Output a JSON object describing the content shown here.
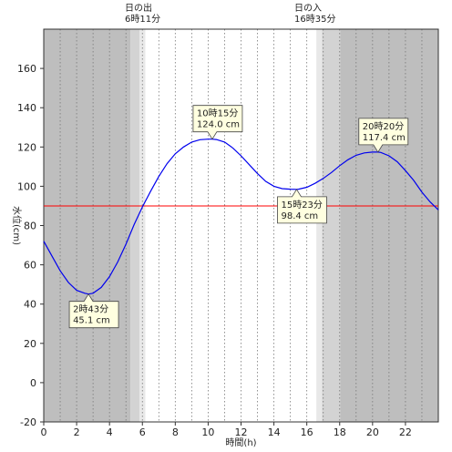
{
  "chart_data": {
    "type": "line",
    "title": "",
    "xlabel": "時間(h)",
    "ylabel": "水位(cm)",
    "xlim": [
      0,
      24
    ],
    "ylim": [
      -20,
      180
    ],
    "xticks": [
      0,
      2,
      4,
      6,
      8,
      10,
      12,
      14,
      16,
      18,
      20,
      22
    ],
    "yticks": [
      -20,
      0,
      20,
      40,
      60,
      80,
      100,
      120,
      140,
      160
    ],
    "x_tick_labels": [
      "0",
      "2",
      "4",
      "6",
      "8",
      "10",
      "12",
      "14",
      "16",
      "18",
      "20",
      "22"
    ],
    "y_tick_labels": [
      "-20",
      "0",
      "20",
      "40",
      "60",
      "80",
      "100",
      "120",
      "140",
      "160"
    ],
    "grid": "vertical dotted lines every hour",
    "series": [
      {
        "color": "#0000ee",
        "x": [
          0,
          0.5,
          1,
          1.5,
          2,
          2.5,
          2.72,
          3,
          3.5,
          4,
          4.5,
          5,
          5.5,
          6,
          6.5,
          7,
          7.5,
          8,
          8.5,
          9,
          9.5,
          10,
          10.25,
          10.5,
          11,
          11.5,
          12,
          12.5,
          13,
          13.5,
          14,
          14.5,
          15,
          15.38,
          15.5,
          16,
          16.5,
          17,
          17.5,
          18,
          18.5,
          19,
          19.5,
          20,
          20.33,
          20.5,
          21,
          21.5,
          22,
          22.5,
          23,
          23.5,
          24
        ],
        "y": [
          72,
          64.5,
          57,
          51,
          47,
          45.5,
          45.1,
          45.5,
          48.5,
          54,
          61.5,
          70.5,
          80.5,
          89.5,
          97.5,
          105,
          111.5,
          116.5,
          120,
          122.5,
          123.7,
          124,
          124,
          123.8,
          122.5,
          119.5,
          115.5,
          111,
          106.5,
          102.5,
          100,
          98.8,
          98.5,
          98.4,
          98.5,
          99.5,
          101.5,
          104,
          107,
          110.5,
          113.5,
          115.8,
          117,
          117.4,
          117.4,
          117.2,
          115.5,
          112.5,
          108,
          103,
          97,
          92,
          88
        ]
      }
    ],
    "reference_line": {
      "y": 90,
      "color": "#ff0000"
    },
    "sunrise": {
      "label": "日の出",
      "time": "6時11分",
      "hour": 6.18
    },
    "sunset": {
      "label": "日の入",
      "time": "16時35分",
      "hour": 16.58
    },
    "annotations": [
      {
        "time": "2時43分",
        "level": "45.1 cm",
        "x": 2.72,
        "y": 45.1,
        "kind": "low"
      },
      {
        "time": "10時15分",
        "level": "124.0 cm",
        "x": 10.25,
        "y": 124.0,
        "kind": "high"
      },
      {
        "time": "15時23分",
        "level": "98.4 cm",
        "x": 15.38,
        "y": 98.4,
        "kind": "low"
      },
      {
        "time": "20時20分",
        "level": "117.4 cm",
        "x": 20.33,
        "y": 117.4,
        "kind": "high"
      }
    ],
    "colors": {
      "night": "#bebebe",
      "twilight_dark": "#d3d3d3",
      "twilight_light": "#e8e8e8",
      "day": "#ffffff",
      "grid": "#777777",
      "annotation_bg": "#ffffe0"
    }
  }
}
